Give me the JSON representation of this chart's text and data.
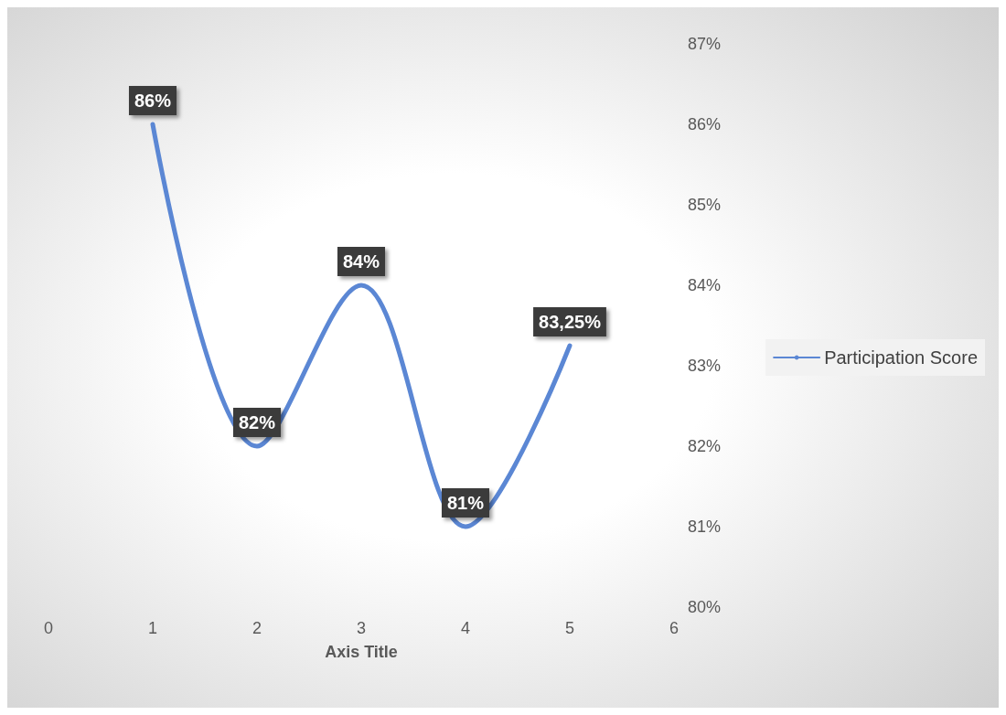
{
  "chart_data": {
    "type": "line",
    "xlabel": "Axis Title",
    "x": [
      1,
      2,
      3,
      4,
      5
    ],
    "series": [
      {
        "name": "Participation Score",
        "color": "#5b87d4",
        "values": [
          86,
          82,
          84,
          81,
          83.25
        ],
        "value_labels": [
          "86%",
          "82%",
          "84%",
          "81%",
          "83,25%"
        ]
      }
    ],
    "xlim": [
      0,
      6
    ],
    "xticks": [
      0,
      1,
      2,
      3,
      4,
      5,
      6
    ],
    "ylim": [
      80,
      87
    ],
    "yticks": [
      {
        "value": 80,
        "label": "80%"
      },
      {
        "value": 81,
        "label": "81%"
      },
      {
        "value": 82,
        "label": "82%"
      },
      {
        "value": 83,
        "label": "83%"
      },
      {
        "value": 84,
        "label": "84%"
      },
      {
        "value": 85,
        "label": "85%"
      },
      {
        "value": 86,
        "label": "86%"
      },
      {
        "value": 87,
        "label": "87%"
      }
    ],
    "grid": false,
    "legend": "right"
  }
}
